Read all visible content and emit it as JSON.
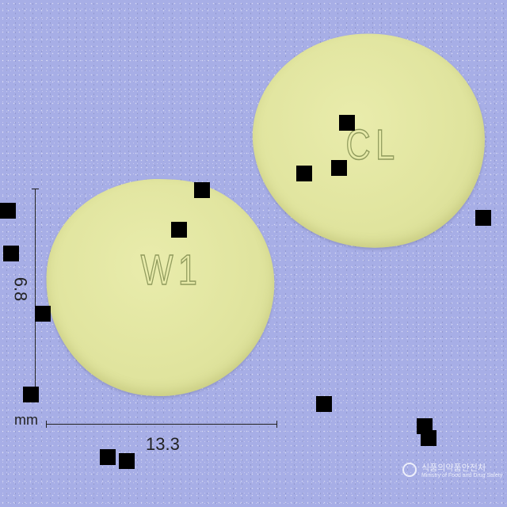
{
  "photo": {
    "background_color": "#a7aee6",
    "pill_color": "#e2e6a2",
    "pills": [
      {
        "side": "back",
        "imprint": "CL"
      },
      {
        "side": "front",
        "imprint": "W1"
      }
    ]
  },
  "dimensions": {
    "height_label": "6.8",
    "width_label": "13.3",
    "unit_label": "mm"
  },
  "watermark": {
    "korean": "식품의약품안전처",
    "english": "Ministry of Food and Drug Safety"
  }
}
